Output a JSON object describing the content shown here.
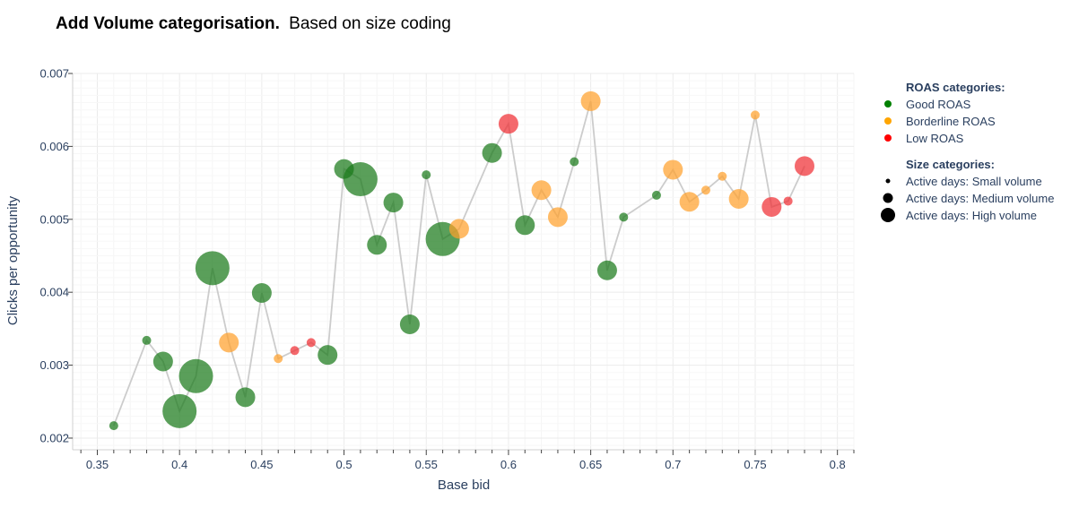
{
  "title": {
    "bold": "Add Volume categorisation.",
    "rest": "Based on size coding"
  },
  "colors": {
    "good": "#1a7a1a",
    "borderline": "#ffa12c",
    "low": "#f02f35",
    "line": "#cccccc",
    "legend_good": "#008000",
    "legend_borderline": "#ffa500",
    "legend_low": "#ff0000"
  },
  "legend": {
    "roas_title": "ROAS categories:",
    "roas_items": [
      {
        "key": "good",
        "label": "Good ROAS"
      },
      {
        "key": "borderline",
        "label": "Borderline ROAS"
      },
      {
        "key": "low",
        "label": "Low ROAS"
      }
    ],
    "size_title": "Size categories:",
    "size_items": [
      {
        "key": "small",
        "label": "Active days: Small volume"
      },
      {
        "key": "medium",
        "label": "Active days: Medium volume"
      },
      {
        "key": "high",
        "label": "Active days: High volume"
      }
    ]
  },
  "chart_data": {
    "type": "scatter",
    "title": "Add Volume categorisation. Based on size coding",
    "xlabel": "Base bid",
    "ylabel": "Clicks per opportunity",
    "xlim": [
      0.335,
      0.81
    ],
    "ylim": [
      0.00184,
      0.007
    ],
    "x_ticks": [
      0.35,
      0.4,
      0.45,
      0.5,
      0.55,
      0.6,
      0.65,
      0.7,
      0.75,
      0.8
    ],
    "x_tick_labels": [
      "0.35",
      "0.4",
      "0.45",
      "0.5",
      "0.55",
      "0.6",
      "0.65",
      "0.7",
      "0.75",
      "0.8"
    ],
    "y_ticks": [
      0.002,
      0.003,
      0.004,
      0.005,
      0.006,
      0.007
    ],
    "y_tick_labels": [
      "0.002",
      "0.003",
      "0.004",
      "0.005",
      "0.006",
      "0.007"
    ],
    "grid": true,
    "connecting_line": true,
    "legend_position": "right",
    "points": [
      {
        "x": 0.36,
        "y": 0.00217,
        "roas": "good",
        "size": "small"
      },
      {
        "x": 0.38,
        "y": 0.00334,
        "roas": "good",
        "size": "small"
      },
      {
        "x": 0.39,
        "y": 0.00305,
        "roas": "good",
        "size": "medium"
      },
      {
        "x": 0.4,
        "y": 0.00237,
        "roas": "good",
        "size": "high"
      },
      {
        "x": 0.41,
        "y": 0.00285,
        "roas": "good",
        "size": "high"
      },
      {
        "x": 0.42,
        "y": 0.00433,
        "roas": "good",
        "size": "high"
      },
      {
        "x": 0.43,
        "y": 0.00331,
        "roas": "borderline",
        "size": "medium"
      },
      {
        "x": 0.44,
        "y": 0.00256,
        "roas": "good",
        "size": "medium"
      },
      {
        "x": 0.45,
        "y": 0.00399,
        "roas": "good",
        "size": "medium"
      },
      {
        "x": 0.46,
        "y": 0.00309,
        "roas": "borderline",
        "size": "small"
      },
      {
        "x": 0.47,
        "y": 0.0032,
        "roas": "low",
        "size": "small"
      },
      {
        "x": 0.48,
        "y": 0.00331,
        "roas": "low",
        "size": "small"
      },
      {
        "x": 0.49,
        "y": 0.00314,
        "roas": "good",
        "size": "medium"
      },
      {
        "x": 0.5,
        "y": 0.00569,
        "roas": "good",
        "size": "medium"
      },
      {
        "x": 0.51,
        "y": 0.00555,
        "roas": "good",
        "size": "high"
      },
      {
        "x": 0.52,
        "y": 0.00465,
        "roas": "good",
        "size": "medium"
      },
      {
        "x": 0.53,
        "y": 0.00523,
        "roas": "good",
        "size": "medium"
      },
      {
        "x": 0.54,
        "y": 0.00356,
        "roas": "good",
        "size": "medium"
      },
      {
        "x": 0.55,
        "y": 0.00561,
        "roas": "good",
        "size": "small"
      },
      {
        "x": 0.56,
        "y": 0.00473,
        "roas": "good",
        "size": "high"
      },
      {
        "x": 0.57,
        "y": 0.00487,
        "roas": "borderline",
        "size": "medium"
      },
      {
        "x": 0.59,
        "y": 0.00591,
        "roas": "good",
        "size": "medium"
      },
      {
        "x": 0.6,
        "y": 0.00631,
        "roas": "low",
        "size": "medium"
      },
      {
        "x": 0.61,
        "y": 0.00492,
        "roas": "good",
        "size": "medium"
      },
      {
        "x": 0.62,
        "y": 0.0054,
        "roas": "borderline",
        "size": "medium"
      },
      {
        "x": 0.63,
        "y": 0.00503,
        "roas": "borderline",
        "size": "medium"
      },
      {
        "x": 0.64,
        "y": 0.00579,
        "roas": "good",
        "size": "small"
      },
      {
        "x": 0.65,
        "y": 0.00662,
        "roas": "borderline",
        "size": "medium"
      },
      {
        "x": 0.66,
        "y": 0.0043,
        "roas": "good",
        "size": "medium"
      },
      {
        "x": 0.67,
        "y": 0.00503,
        "roas": "good",
        "size": "small"
      },
      {
        "x": 0.69,
        "y": 0.00533,
        "roas": "good",
        "size": "small"
      },
      {
        "x": 0.7,
        "y": 0.00568,
        "roas": "borderline",
        "size": "medium"
      },
      {
        "x": 0.71,
        "y": 0.00524,
        "roas": "borderline",
        "size": "medium"
      },
      {
        "x": 0.72,
        "y": 0.0054,
        "roas": "borderline",
        "size": "small"
      },
      {
        "x": 0.73,
        "y": 0.00559,
        "roas": "borderline",
        "size": "small"
      },
      {
        "x": 0.74,
        "y": 0.00528,
        "roas": "borderline",
        "size": "medium"
      },
      {
        "x": 0.75,
        "y": 0.00643,
        "roas": "borderline",
        "size": "small"
      },
      {
        "x": 0.76,
        "y": 0.00517,
        "roas": "low",
        "size": "medium"
      },
      {
        "x": 0.77,
        "y": 0.00525,
        "roas": "low",
        "size": "small"
      },
      {
        "x": 0.78,
        "y": 0.00573,
        "roas": "low",
        "size": "medium"
      }
    ]
  }
}
